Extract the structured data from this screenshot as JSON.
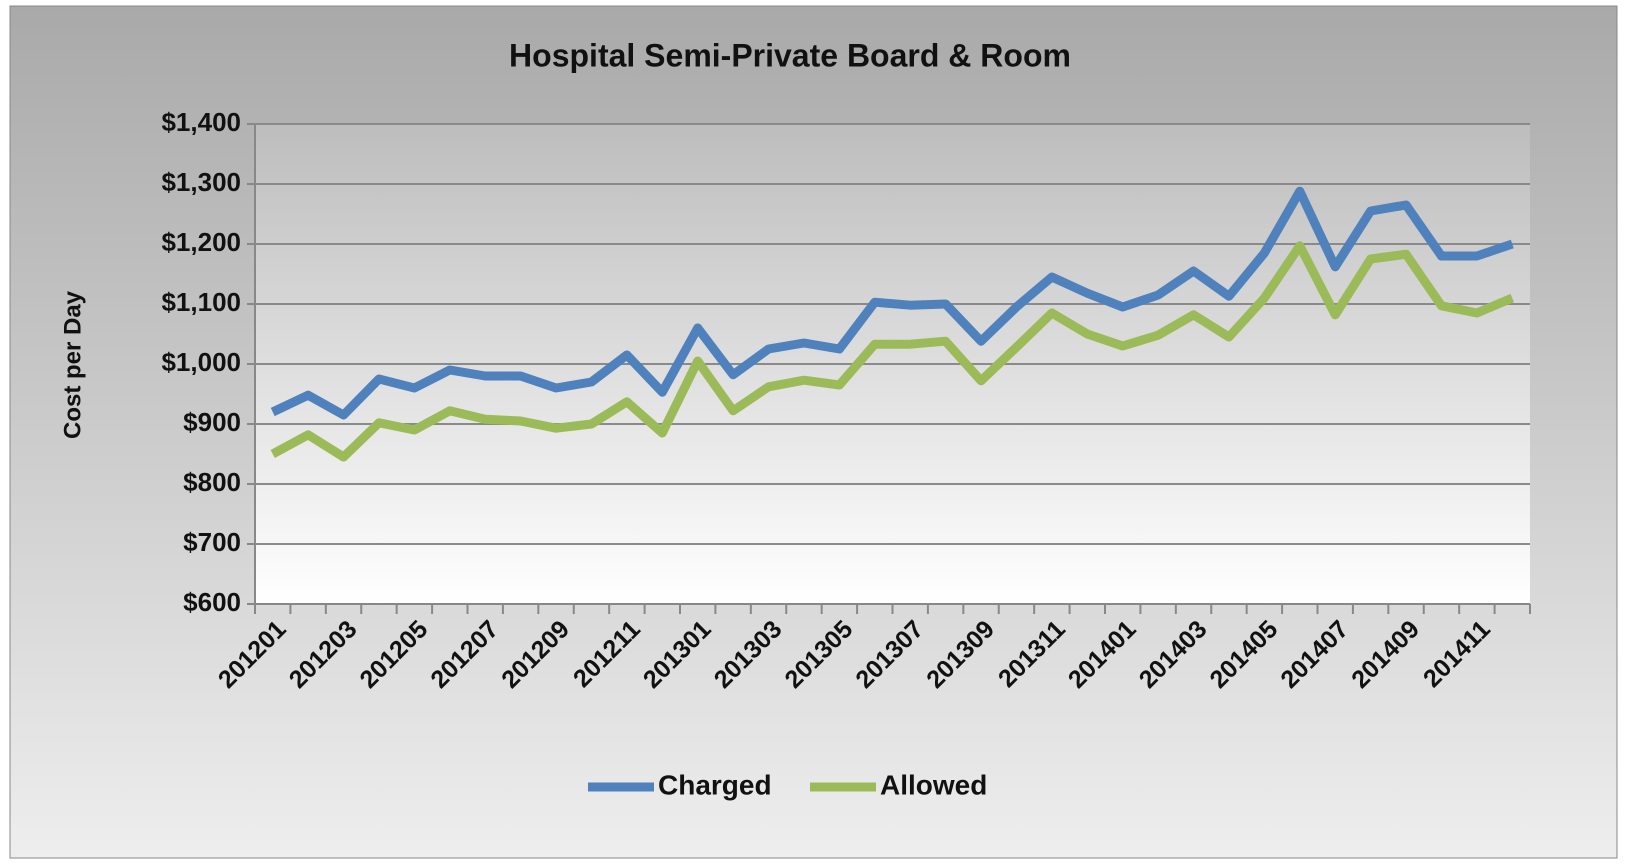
{
  "chart_data": {
    "type": "line",
    "title": "Hospital Semi-Private Board & Room",
    "y_label": "Cost per Day",
    "categories": [
      "201201",
      null,
      "201203",
      null,
      "201205",
      null,
      "201207",
      null,
      "201209",
      null,
      "201211",
      null,
      "201301",
      null,
      "201303",
      null,
      "201305",
      null,
      "201307",
      null,
      "201309",
      null,
      "201311",
      null,
      "201401",
      null,
      "201403",
      null,
      "201405",
      null,
      "201407",
      null,
      "201409",
      null,
      "201411",
      null
    ],
    "series": [
      {
        "name": "Charged",
        "color": "#4f81bd",
        "values": [
          920,
          948,
          915,
          975,
          960,
          990,
          980,
          980,
          960,
          970,
          1015,
          953,
          1060,
          982,
          1025,
          1035,
          1025,
          1103,
          1098,
          1100,
          1038,
          1095,
          1145,
          1118,
          1095,
          1115,
          1155,
          1113,
          1185,
          1288,
          1162,
          1255,
          1265,
          1180,
          1180,
          1200
        ]
      },
      {
        "name": "Allowed",
        "color": "#9bbb59",
        "values": [
          850,
          882,
          845,
          902,
          890,
          922,
          908,
          905,
          893,
          900,
          937,
          885,
          1005,
          922,
          962,
          973,
          965,
          1033,
          1033,
          1038,
          972,
          1028,
          1085,
          1050,
          1030,
          1048,
          1082,
          1045,
          1110,
          1197,
          1082,
          1175,
          1183,
          1097,
          1085,
          1110
        ]
      }
    ],
    "ylim": [
      600,
      1400
    ],
    "yticks": [
      {
        "value": 600,
        "label": "$600"
      },
      {
        "value": 700,
        "label": "$700"
      },
      {
        "value": 800,
        "label": "$800"
      },
      {
        "value": 900,
        "label": "$900"
      },
      {
        "value": 1000,
        "label": "$1,000"
      },
      {
        "value": 1100,
        "label": "$1,100"
      },
      {
        "value": 1200,
        "label": "$1,200"
      },
      {
        "value": 1300,
        "label": "$1,300"
      },
      {
        "value": 1400,
        "label": "$1,400"
      }
    ],
    "grid": true,
    "legend": "bottom"
  }
}
